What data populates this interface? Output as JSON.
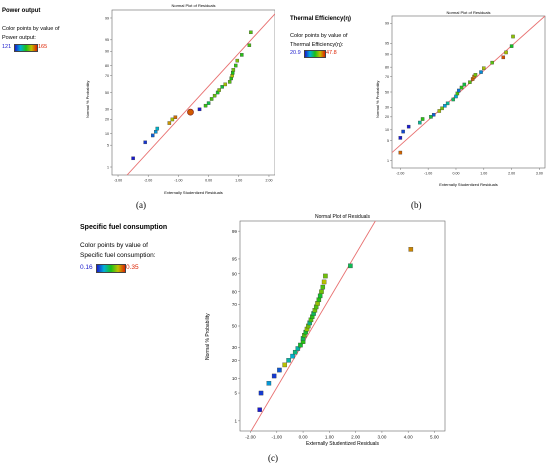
{
  "chart_data": [
    {
      "type": "scatter",
      "panel_label": "(a)",
      "response": "Power output",
      "chart_title": "Normal Plot of Residuals",
      "xlabel": "Externally Studentized Residuals",
      "ylabel": "Normal % Probability",
      "legend": {
        "caption1": "Color points by value of",
        "caption2": "Power output:",
        "min": "121",
        "max": "165"
      },
      "xlim": [
        -3.2,
        2.2
      ],
      "xticks": [
        "-3.00",
        "-2.00",
        "-1.00",
        "0.00",
        "1.00",
        "2.00"
      ],
      "xtick_values": [
        -3,
        -2,
        -1,
        0,
        1,
        2
      ],
      "yticks": [
        "1",
        "5",
        "10",
        "20",
        "30",
        "50",
        "70",
        "80",
        "90",
        "95",
        "99"
      ],
      "ytick_values": [
        1,
        5,
        10,
        20,
        30,
        50,
        70,
        80,
        90,
        95,
        99
      ],
      "ylim": [
        0.5,
        99.5
      ],
      "reference_line": {
        "x": [
          -3.2,
          2.2
        ],
        "prob": [
          0.1,
          99.3
        ]
      },
      "points": [
        {
          "x": -2.5,
          "p": 2,
          "v": 121
        },
        {
          "x": -2.1,
          "p": 6,
          "v": 123
        },
        {
          "x": -1.85,
          "p": 9,
          "v": 126
        },
        {
          "x": -1.75,
          "p": 11,
          "v": 130
        },
        {
          "x": -1.7,
          "p": 13,
          "v": 133
        },
        {
          "x": -1.3,
          "p": 17,
          "v": 157
        },
        {
          "x": -1.2,
          "p": 20,
          "v": 152
        },
        {
          "x": -1.1,
          "p": 22,
          "v": 160
        },
        {
          "x": -0.6,
          "p": 27,
          "v": 161,
          "highlight": true
        },
        {
          "x": -0.3,
          "p": 30,
          "v": 121
        },
        {
          "x": -0.1,
          "p": 34,
          "v": 145
        },
        {
          "x": 0.0,
          "p": 37,
          "v": 140
        },
        {
          "x": 0.1,
          "p": 42,
          "v": 146
        },
        {
          "x": 0.2,
          "p": 46,
          "v": 148
        },
        {
          "x": 0.3,
          "p": 50,
          "v": 142
        },
        {
          "x": 0.35,
          "p": 53,
          "v": 150
        },
        {
          "x": 0.45,
          "p": 57,
          "v": 141
        },
        {
          "x": 0.55,
          "p": 60,
          "v": 152
        },
        {
          "x": 0.7,
          "p": 63,
          "v": 147
        },
        {
          "x": 0.75,
          "p": 67,
          "v": 144
        },
        {
          "x": 0.78,
          "p": 70,
          "v": 153
        },
        {
          "x": 0.8,
          "p": 73,
          "v": 143
        },
        {
          "x": 0.82,
          "p": 76,
          "v": 149
        },
        {
          "x": 0.9,
          "p": 80,
          "v": 145
        },
        {
          "x": 0.95,
          "p": 84,
          "v": 150
        },
        {
          "x": 1.1,
          "p": 88,
          "v": 144
        },
        {
          "x": 1.35,
          "p": 93,
          "v": 146
        },
        {
          "x": 1.4,
          "p": 97,
          "v": 147
        }
      ]
    },
    {
      "type": "scatter",
      "panel_label": "(b)",
      "response": "Thermal Efficiency(η)",
      "chart_title": "Normal Plot of Residuals",
      "xlabel": "Externally Studentized Residuals",
      "ylabel": "Normal % Probability",
      "legend": {
        "caption1": "Color points by value of",
        "caption2": "Thermal Efficiency(η):",
        "min": "20.9",
        "max": "47.8"
      },
      "xlim": [
        -2.3,
        3.2
      ],
      "xticks": [
        "-2.00",
        "-1.00",
        "0.00",
        "1.00",
        "2.00",
        "3.00"
      ],
      "xtick_values": [
        -2,
        -1,
        0,
        1,
        2,
        3
      ],
      "yticks": [
        "1",
        "5",
        "10",
        "20",
        "30",
        "50",
        "70",
        "80",
        "90",
        "95",
        "99"
      ],
      "ytick_values": [
        1,
        5,
        10,
        20,
        30,
        50,
        70,
        80,
        90,
        95,
        99
      ],
      "ylim": [
        0.5,
        99.5
      ],
      "reference_line": {
        "x": [
          -2.3,
          3.2
        ],
        "prob": [
          2.0,
          99.5
        ]
      },
      "points": [
        {
          "x": -2.0,
          "p": 2,
          "v": 45
        },
        {
          "x": -2.0,
          "p": 6,
          "v": 21
        },
        {
          "x": -1.9,
          "p": 9,
          "v": 23
        },
        {
          "x": -1.7,
          "p": 12,
          "v": 21
        },
        {
          "x": -1.3,
          "p": 15,
          "v": 30
        },
        {
          "x": -1.2,
          "p": 18,
          "v": 35
        },
        {
          "x": -0.9,
          "p": 20,
          "v": 33
        },
        {
          "x": -0.8,
          "p": 22,
          "v": 24
        },
        {
          "x": -0.6,
          "p": 26,
          "v": 40
        },
        {
          "x": -0.5,
          "p": 29,
          "v": 38
        },
        {
          "x": -0.4,
          "p": 32,
          "v": 27
        },
        {
          "x": -0.3,
          "p": 35,
          "v": 30
        },
        {
          "x": -0.1,
          "p": 40,
          "v": 32
        },
        {
          "x": 0.0,
          "p": 44,
          "v": 28
        },
        {
          "x": 0.05,
          "p": 48,
          "v": 36
        },
        {
          "x": 0.1,
          "p": 52,
          "v": 25
        },
        {
          "x": 0.2,
          "p": 56,
          "v": 35
        },
        {
          "x": 0.3,
          "p": 60,
          "v": 33
        },
        {
          "x": 0.5,
          "p": 63,
          "v": 37
        },
        {
          "x": 0.6,
          "p": 67,
          "v": 45
        },
        {
          "x": 0.65,
          "p": 70,
          "v": 44
        },
        {
          "x": 0.7,
          "p": 72,
          "v": 38
        },
        {
          "x": 0.9,
          "p": 75,
          "v": 26
        },
        {
          "x": 1.0,
          "p": 79,
          "v": 40
        },
        {
          "x": 1.3,
          "p": 84,
          "v": 37
        },
        {
          "x": 1.7,
          "p": 88,
          "v": 46
        },
        {
          "x": 1.8,
          "p": 91,
          "v": 40
        },
        {
          "x": 2.0,
          "p": 94,
          "v": 34
        },
        {
          "x": 2.05,
          "p": 97,
          "v": 39
        }
      ]
    },
    {
      "type": "scatter",
      "panel_label": "(c)",
      "response": "Specific fuel consumption",
      "chart_title": "Normal Plot of Residuals",
      "xlabel": "Externally Studentized Residuals",
      "ylabel": "Normal % Probability",
      "legend": {
        "caption1": "Color points by value of",
        "caption2": "Specific fuel consumption:",
        "min": "0.16",
        "max": "0.35"
      },
      "xlim": [
        -2.4,
        5.4
      ],
      "xticks": [
        "-2.00",
        "-1.00",
        "0.00",
        "1.00",
        "2.00",
        "3.00",
        "4.00",
        "5.00"
      ],
      "xtick_values": [
        -2,
        -1,
        0,
        1,
        2,
        3,
        4,
        5
      ],
      "yticks": [
        "1",
        "5",
        "10",
        "20",
        "30",
        "50",
        "70",
        "80",
        "90",
        "95",
        "99"
      ],
      "ytick_values": [
        1,
        5,
        10,
        20,
        30,
        50,
        70,
        80,
        90,
        95,
        99
      ],
      "ylim": [
        0.5,
        99.5
      ],
      "reference_line": {
        "x": [
          -2.4,
          2.75
        ],
        "prob": [
          0.12,
          99.5
        ]
      },
      "points": [
        {
          "x": -1.65,
          "p": 2,
          "v": 0.16
        },
        {
          "x": -1.6,
          "p": 5,
          "v": 0.17
        },
        {
          "x": -1.3,
          "p": 8,
          "v": 0.2
        },
        {
          "x": -1.1,
          "p": 11,
          "v": 0.17
        },
        {
          "x": -0.9,
          "p": 14,
          "v": 0.18
        },
        {
          "x": -0.7,
          "p": 17,
          "v": 0.3
        },
        {
          "x": -0.55,
          "p": 20,
          "v": 0.22
        },
        {
          "x": -0.4,
          "p": 23,
          "v": 0.21
        },
        {
          "x": -0.3,
          "p": 26,
          "v": 0.23
        },
        {
          "x": -0.2,
          "p": 29,
          "v": 0.22
        },
        {
          "x": -0.1,
          "p": 32,
          "v": 0.25
        },
        {
          "x": 0.0,
          "p": 35,
          "v": 0.26
        },
        {
          "x": 0.0,
          "p": 38,
          "v": 0.24
        },
        {
          "x": 0.05,
          "p": 41,
          "v": 0.27
        },
        {
          "x": 0.1,
          "p": 44,
          "v": 0.25
        },
        {
          "x": 0.15,
          "p": 47,
          "v": 0.29
        },
        {
          "x": 0.2,
          "p": 50,
          "v": 0.28
        },
        {
          "x": 0.25,
          "p": 53,
          "v": 0.23
        },
        {
          "x": 0.3,
          "p": 56,
          "v": 0.27
        },
        {
          "x": 0.35,
          "p": 59,
          "v": 0.26
        },
        {
          "x": 0.4,
          "p": 62,
          "v": 0.24
        },
        {
          "x": 0.45,
          "p": 65,
          "v": 0.28
        },
        {
          "x": 0.5,
          "p": 68,
          "v": 0.27
        },
        {
          "x": 0.55,
          "p": 71,
          "v": 0.29
        },
        {
          "x": 0.6,
          "p": 74,
          "v": 0.26
        },
        {
          "x": 0.65,
          "p": 77,
          "v": 0.25
        },
        {
          "x": 0.7,
          "p": 80,
          "v": 0.28
        },
        {
          "x": 0.75,
          "p": 83,
          "v": 0.27
        },
        {
          "x": 0.8,
          "p": 86,
          "v": 0.3
        },
        {
          "x": 0.85,
          "p": 89,
          "v": 0.28
        },
        {
          "x": 1.8,
          "p": 93,
          "v": 0.24
        },
        {
          "x": 4.1,
          "p": 97,
          "v": 0.32
        }
      ]
    }
  ]
}
